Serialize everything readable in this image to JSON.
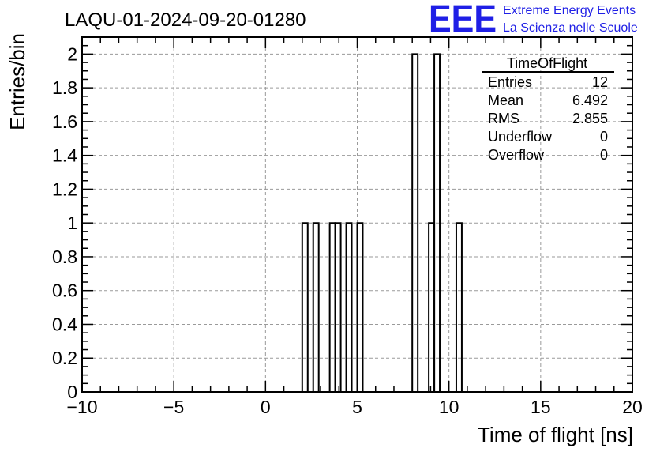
{
  "header": {
    "run_id": "LAQU-01-2024-09-20-01280",
    "logo_letters": "EEE",
    "logo_line1": "Extreme Energy Events",
    "logo_line2": "La Scienza nelle Scuole"
  },
  "stats": {
    "title": "TimeOfFlight",
    "rows": [
      {
        "label": "Entries",
        "value": "12"
      },
      {
        "label": "Mean",
        "value": "6.492"
      },
      {
        "label": "RMS",
        "value": "2.855"
      },
      {
        "label": "Underflow",
        "value": "0"
      },
      {
        "label": "Overflow",
        "value": "0"
      }
    ]
  },
  "chart_data": {
    "type": "bar",
    "title": "",
    "xlabel": "Time of flight [ns]",
    "ylabel": "Entries/bin",
    "xlim": [
      -10,
      20
    ],
    "ylim": [
      0,
      2.1
    ],
    "grid": true,
    "bin_width": 0.3,
    "x_ticks": [
      -10,
      -5,
      0,
      5,
      10,
      15,
      20
    ],
    "x_tick_labels": [
      "−10",
      "−5",
      "0",
      "5",
      "10",
      "15",
      "20"
    ],
    "y_ticks": [
      0,
      0.2,
      0.4,
      0.6,
      0.8,
      1,
      1.2,
      1.4,
      1.6,
      1.8,
      2
    ],
    "y_tick_labels": [
      "0",
      "0.2",
      "0.4",
      "0.6",
      "0.8",
      "1",
      "1.2",
      "1.4",
      "1.6",
      "1.8",
      "2"
    ],
    "bins": [
      {
        "x_low": 2.0,
        "value": 1
      },
      {
        "x_low": 2.6,
        "value": 1
      },
      {
        "x_low": 3.5,
        "value": 1
      },
      {
        "x_low": 3.8,
        "value": 1
      },
      {
        "x_low": 4.4,
        "value": 1
      },
      {
        "x_low": 5.0,
        "value": 1
      },
      {
        "x_low": 8.0,
        "value": 2
      },
      {
        "x_low": 8.9,
        "value": 1
      },
      {
        "x_low": 9.2,
        "value": 2
      },
      {
        "x_low": 10.4,
        "value": 1
      }
    ]
  }
}
